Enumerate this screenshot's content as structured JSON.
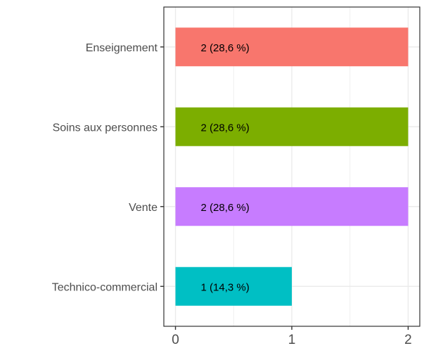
{
  "chart_data": {
    "type": "bar",
    "orientation": "horizontal",
    "categories": [
      "Enseignement",
      "Soins aux personnes",
      "Vente",
      "Technico-commercial"
    ],
    "values": [
      2,
      2,
      2,
      1
    ],
    "data_labels": [
      "2 (28,6 %)",
      "2 (28,6 %)",
      "2 (28,6 %)",
      "1 (14,3 %)"
    ],
    "colors": [
      "#F8766D",
      "#7CAE00",
      "#C77CFF",
      "#00BFC4"
    ],
    "x_ticks": [
      0,
      1,
      2
    ],
    "x_tick_labels": [
      "0",
      "1",
      "2"
    ],
    "xlim": [
      -0.1,
      2.1
    ],
    "grid": true,
    "title": "",
    "xlabel": "",
    "ylabel": ""
  }
}
